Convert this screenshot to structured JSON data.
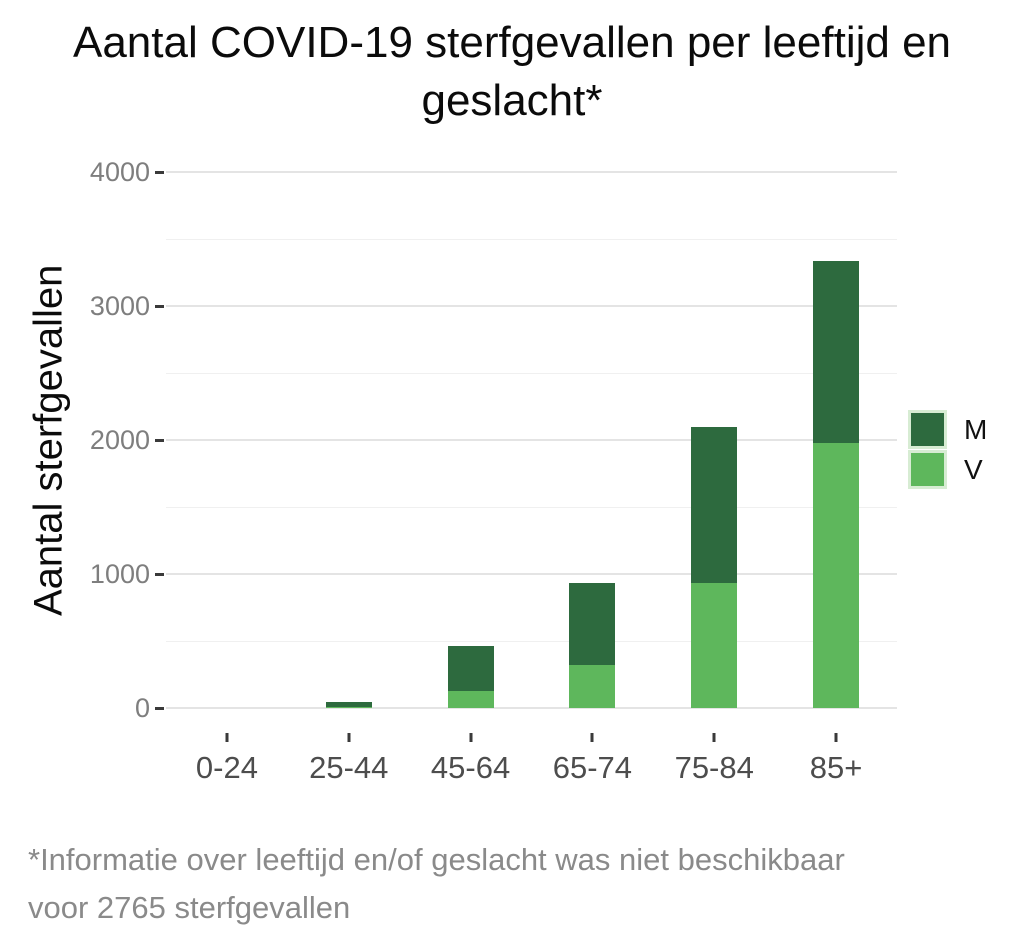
{
  "page": {
    "title_lines": [
      "Aantal COVID-19 sterfgevallen per leeftijd en",
      "geslacht*"
    ],
    "footnote_lines": [
      "*Informatie over leeftijd en/of geslacht was niet beschikbaar",
      "voor 2765 sterfgevallen"
    ]
  },
  "chart_data": {
    "type": "bar",
    "stacked": true,
    "title": "Aantal COVID-19 sterfgevallen per leeftijd en geslacht*",
    "ylabel": "Aantal sterfgevallen",
    "xlabel": "",
    "categories": [
      "0-24",
      "25-44",
      "45-64",
      "65-74",
      "75-84",
      "85+"
    ],
    "series": [
      {
        "name": "M",
        "color": "#2D6A3E",
        "values": [
          0,
          35,
          330,
          610,
          1165,
          1355
        ]
      },
      {
        "name": "V",
        "color": "#5EB75C",
        "values": [
          0,
          10,
          130,
          320,
          935,
          1980
        ]
      }
    ],
    "stack_bottom_to_top": [
      "V",
      "M"
    ],
    "totals": [
      0,
      45,
      460,
      930,
      2100,
      3335
    ],
    "ylim": [
      0,
      4000
    ],
    "ytick_values": [
      0,
      1000,
      2000,
      3000,
      4000
    ],
    "minor_grid_step": 500,
    "grid": true,
    "legend_position": "right",
    "legend_labels": [
      "M",
      "V"
    ]
  },
  "colors": {
    "male_dark_green": "#2D6A3E",
    "female_light_green": "#5EB75C",
    "grid_major": "#e4e4e4",
    "grid_minor": "#f0f0f0",
    "y_tick_label_gray": "#7e7e7e",
    "x_tick_label_gray": "#4d4d4d",
    "footnote_gray": "#8a8a8a"
  }
}
